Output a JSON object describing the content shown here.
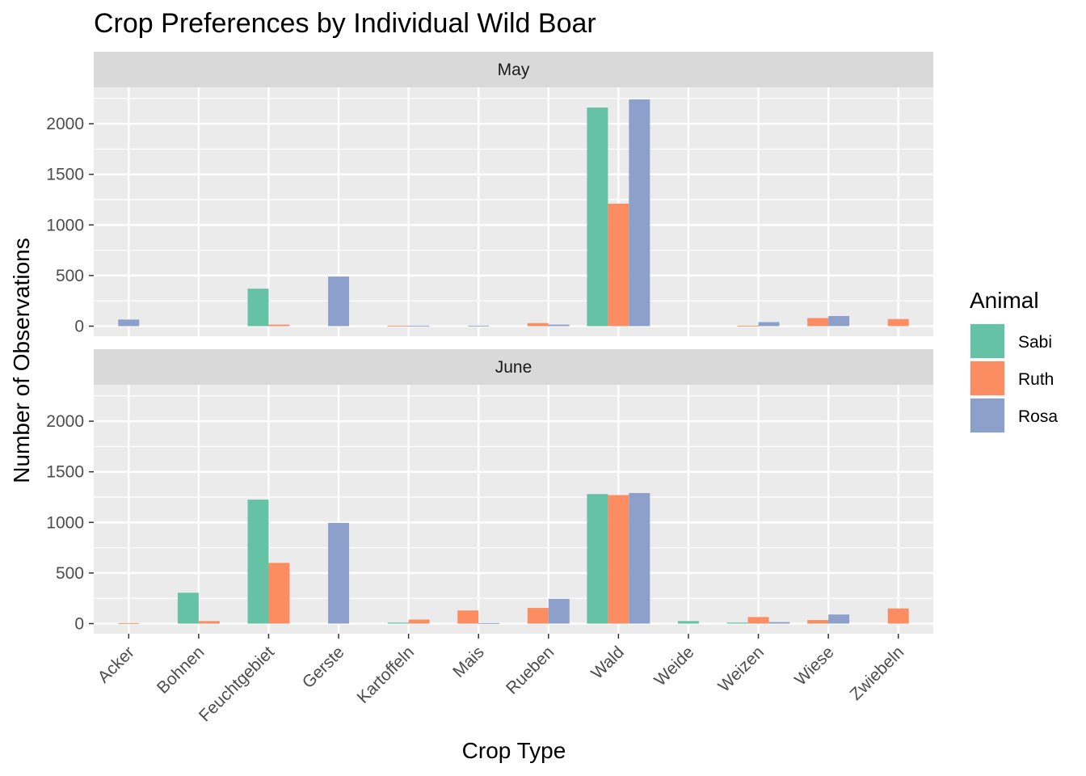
{
  "chart_data": {
    "type": "bar",
    "title": "Crop Preferences by Individual Wild Boar",
    "xlabel": "Crop Type",
    "ylabel": "Number of Observations",
    "ylim": [
      -100,
      2360
    ],
    "yticks": [
      0,
      500,
      1000,
      1500,
      2000
    ],
    "grid": true,
    "legend": {
      "title": "Animal",
      "placement": "right",
      "entries": [
        {
          "name": "Sabi",
          "color": "#66C2A5"
        },
        {
          "name": "Ruth",
          "color": "#FC8D62"
        },
        {
          "name": "Rosa",
          "color": "#8DA0CB"
        }
      ]
    },
    "categories": [
      "Acker",
      "Bohnen",
      "Feuchtgebiet",
      "Gerste",
      "Kartoffeln",
      "Mais",
      "Rueben",
      "Wald",
      "Weide",
      "Weizen",
      "Wiese",
      "Zwiebeln"
    ],
    "facets": [
      {
        "label": "May",
        "bars": [
          {
            "category": "Acker",
            "animal": "Rosa",
            "value": 65
          },
          {
            "category": "Feuchtgebiet",
            "animal": "Sabi",
            "value": 370
          },
          {
            "category": "Feuchtgebiet",
            "animal": "Ruth",
            "value": 15
          },
          {
            "category": "Gerste",
            "animal": "Rosa",
            "value": 490
          },
          {
            "category": "Kartoffeln",
            "animal": "Ruth",
            "value": 5
          },
          {
            "category": "Kartoffeln",
            "animal": "Rosa",
            "value": 5
          },
          {
            "category": "Mais",
            "animal": "Rosa",
            "value": 5
          },
          {
            "category": "Rueben",
            "animal": "Ruth",
            "value": 30
          },
          {
            "category": "Rueben",
            "animal": "Rosa",
            "value": 15
          },
          {
            "category": "Wald",
            "animal": "Sabi",
            "value": 2160
          },
          {
            "category": "Wald",
            "animal": "Ruth",
            "value": 1210
          },
          {
            "category": "Wald",
            "animal": "Rosa",
            "value": 2240
          },
          {
            "category": "Weizen",
            "animal": "Ruth",
            "value": 5
          },
          {
            "category": "Weizen",
            "animal": "Rosa",
            "value": 40
          },
          {
            "category": "Wiese",
            "animal": "Ruth",
            "value": 80
          },
          {
            "category": "Wiese",
            "animal": "Rosa",
            "value": 100
          },
          {
            "category": "Zwiebeln",
            "animal": "Ruth",
            "value": 70
          }
        ]
      },
      {
        "label": "June",
        "bars": [
          {
            "category": "Acker",
            "animal": "Ruth",
            "value": 5
          },
          {
            "category": "Bohnen",
            "animal": "Sabi",
            "value": 305
          },
          {
            "category": "Bohnen",
            "animal": "Ruth",
            "value": 25
          },
          {
            "category": "Feuchtgebiet",
            "animal": "Sabi",
            "value": 1225
          },
          {
            "category": "Feuchtgebiet",
            "animal": "Ruth",
            "value": 600
          },
          {
            "category": "Gerste",
            "animal": "Rosa",
            "value": 995
          },
          {
            "category": "Kartoffeln",
            "animal": "Sabi",
            "value": 10
          },
          {
            "category": "Kartoffeln",
            "animal": "Ruth",
            "value": 40
          },
          {
            "category": "Mais",
            "animal": "Ruth",
            "value": 130
          },
          {
            "category": "Mais",
            "animal": "Rosa",
            "value": 5
          },
          {
            "category": "Rueben",
            "animal": "Ruth",
            "value": 155
          },
          {
            "category": "Rueben",
            "animal": "Rosa",
            "value": 245
          },
          {
            "category": "Wald",
            "animal": "Sabi",
            "value": 1280
          },
          {
            "category": "Wald",
            "animal": "Ruth",
            "value": 1270
          },
          {
            "category": "Wald",
            "animal": "Rosa",
            "value": 1290
          },
          {
            "category": "Weide",
            "animal": "Sabi",
            "value": 25
          },
          {
            "category": "Weizen",
            "animal": "Sabi",
            "value": 10
          },
          {
            "category": "Weizen",
            "animal": "Ruth",
            "value": 65
          },
          {
            "category": "Weizen",
            "animal": "Rosa",
            "value": 15
          },
          {
            "category": "Wiese",
            "animal": "Ruth",
            "value": 35
          },
          {
            "category": "Wiese",
            "animal": "Rosa",
            "value": 90
          },
          {
            "category": "Zwiebeln",
            "animal": "Ruth",
            "value": 150
          }
        ]
      }
    ]
  }
}
